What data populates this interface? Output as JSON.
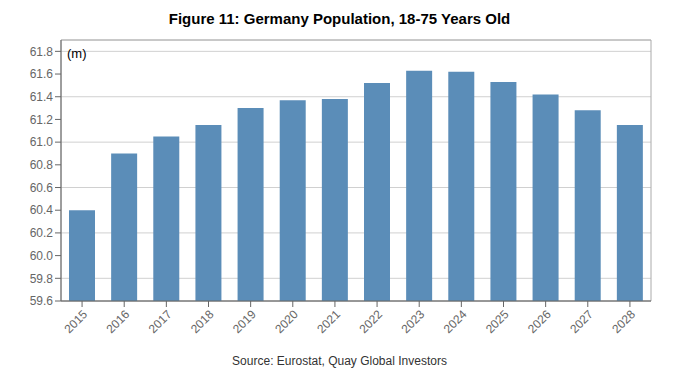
{
  "chart_data": {
    "type": "bar",
    "title": "Figure 11: Germany Population, 18-75 Years Old",
    "ylabel": "(m)",
    "source": "Source: Eurostat, Quay Global Investors",
    "categories": [
      "2015",
      "2016",
      "2017",
      "2018",
      "2019",
      "2020",
      "2021",
      "2022",
      "2023",
      "2024",
      "2025",
      "2026",
      "2027",
      "2028"
    ],
    "values": [
      60.4,
      60.9,
      61.05,
      61.15,
      61.3,
      61.37,
      61.38,
      61.52,
      61.63,
      61.62,
      61.53,
      61.42,
      61.28,
      61.15
    ],
    "color": "#5B8DB8",
    "ylim": [
      59.6,
      61.9
    ],
    "yticks": [
      59.6,
      59.8,
      {
        "value": 60.0,
        "label": "60.0"
      },
      60.2,
      60.4,
      60.6,
      60.8,
      {
        "value": 61.0,
        "label": "61.0"
      },
      61.2,
      61.4,
      61.6,
      61.8
    ],
    "grid": true
  }
}
